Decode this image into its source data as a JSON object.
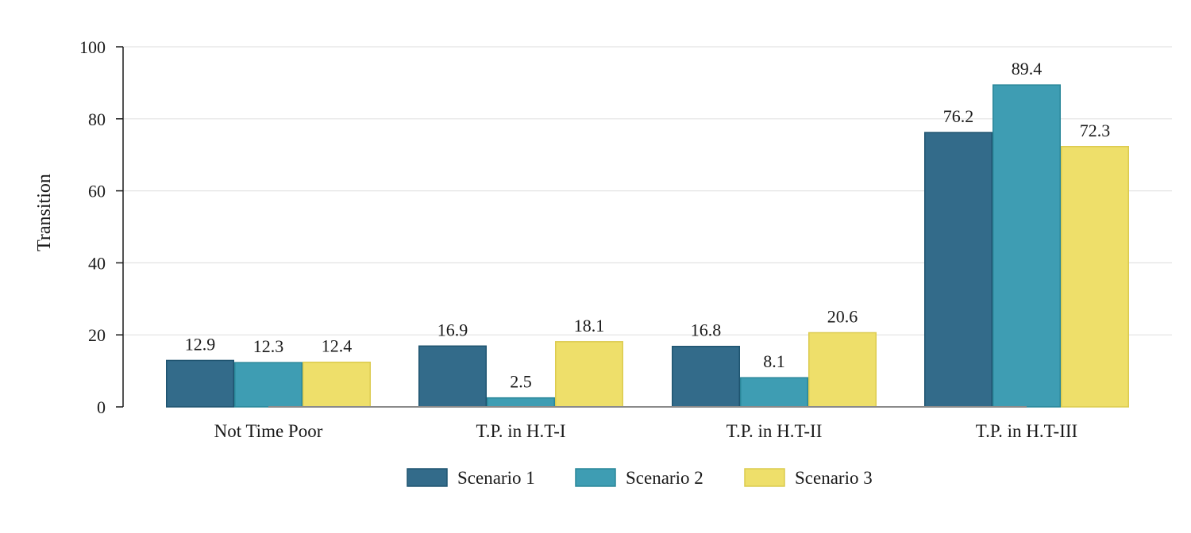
{
  "chart_data": {
    "type": "bar",
    "title": "",
    "xlabel": "",
    "ylabel": "Transition",
    "ylim": [
      0,
      100
    ],
    "yticks": [
      0,
      20,
      40,
      60,
      80,
      100
    ],
    "grid": true,
    "legend_position": "bottom",
    "categories": [
      "Not Time Poor",
      "T.P. in H.T-I",
      "T.P. in H.T-II",
      "T.P. in H.T-III"
    ],
    "series": [
      {
        "name": "Scenario 1",
        "values": [
          12.9,
          16.9,
          16.8,
          76.2
        ],
        "color": "#336b8a",
        "stroke": "#1f5470"
      },
      {
        "name": "Scenario 2",
        "values": [
          12.3,
          2.5,
          8.1,
          89.4
        ],
        "color": "#3e9db3",
        "stroke": "#2a8799"
      },
      {
        "name": "Scenario 3",
        "values": [
          12.4,
          18.1,
          20.6,
          72.3
        ],
        "color": "#eedf6a",
        "stroke": "#dccb4f"
      }
    ],
    "value_labels": [
      [
        "12.9",
        "16.9",
        "16.8",
        "76.2"
      ],
      [
        "12.3",
        "2.5",
        "8.1",
        "89.4"
      ],
      [
        "12.4",
        "18.1",
        "20.6",
        "72.3"
      ]
    ],
    "colors": {
      "grid": "#e3e3e3",
      "axis": "#1a1a1a",
      "baseline": "#8a8a8a"
    }
  }
}
